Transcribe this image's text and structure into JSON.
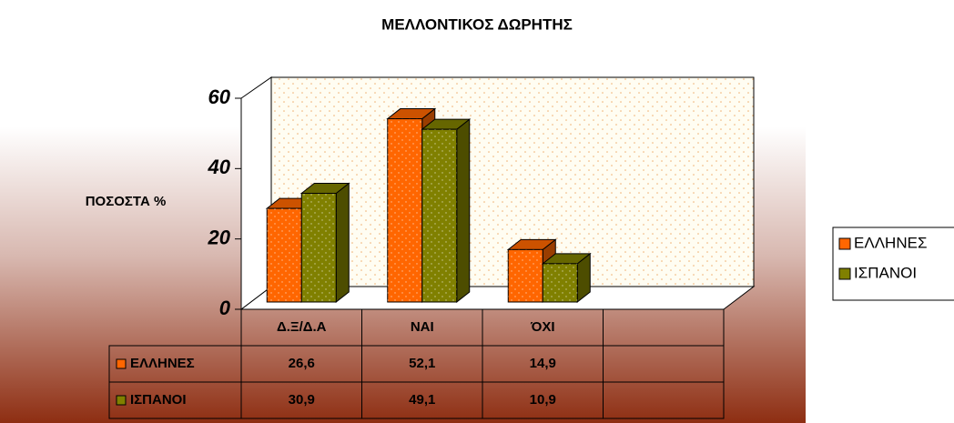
{
  "chart_data": {
    "type": "bar3d",
    "title": "ΜΕΛΛΟΝΤΙΚΟΣ ΔΩΡΗΤΗΣ",
    "y_label": "ΠΟΣΟΣΤΑ %",
    "categories": [
      "Δ.Ξ/Δ.Α",
      "ΝΑΙ",
      "ΌΧΙ",
      null
    ],
    "series": [
      {
        "name": "ΕΛΛΗΝΕΣ",
        "color": "#ff6600",
        "values": [
          26.6,
          52.1,
          14.9,
          null
        ],
        "value_labels": [
          "26,6",
          "52,1",
          "14,9",
          null
        ]
      },
      {
        "name": "ΙΣΠΑΝΟΙ",
        "color": "#808000",
        "values": [
          30.9,
          49.1,
          10.9,
          null
        ],
        "value_labels": [
          "30,9",
          "49,1",
          "10,9",
          null
        ]
      }
    ],
    "ylim": [
      0,
      60
    ],
    "yticks": [
      0,
      20,
      40,
      60
    ],
    "legend": "right",
    "data_table": true
  }
}
